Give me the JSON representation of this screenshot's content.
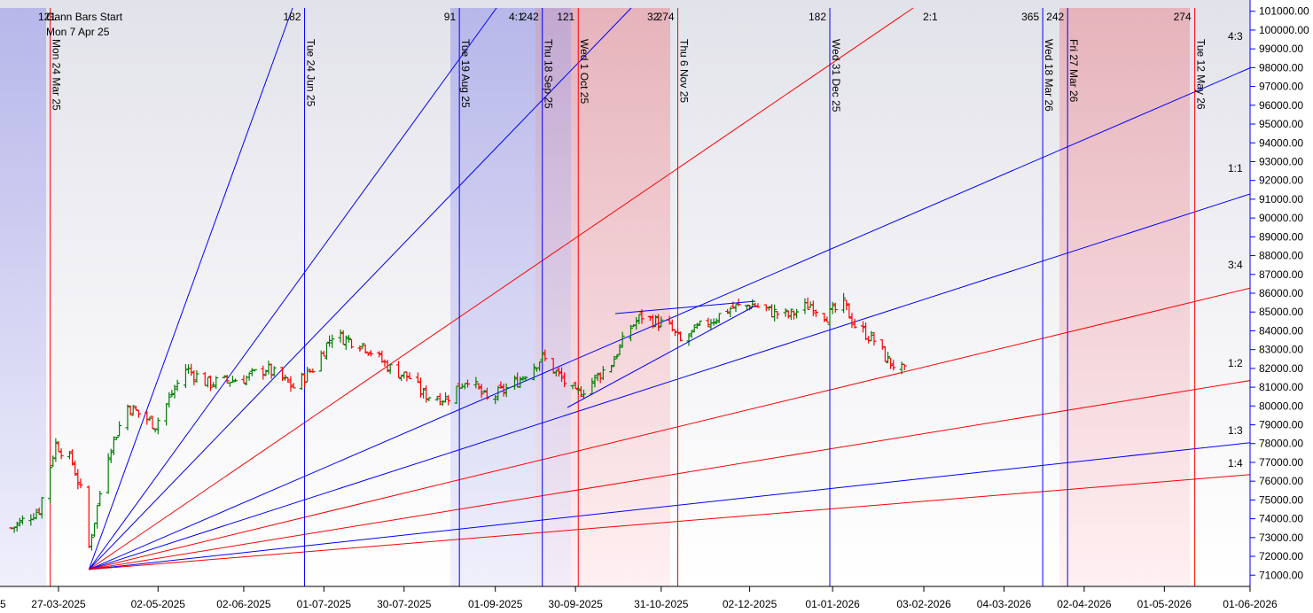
{
  "chart_data": {
    "type": "candlestick",
    "title": "",
    "annotation": {
      "gann_start_label": "Gann Bars Start",
      "gann_start_date": "Mon 7 Apr 25",
      "overlapped_label": "121"
    },
    "x_axis": {
      "tick_labels": [
        "27-03-2025",
        "02-05-2025",
        "02-06-2025",
        "01-07-2025",
        "30-07-2025",
        "01-09-2025",
        "30-09-2025",
        "31-10-2025",
        "02-12-2025",
        "01-01-2026",
        "03-02-2026",
        "04-03-2026",
        "02-04-2026",
        "01-05-2026",
        "01-06-2026"
      ],
      "partial_left_label": "5"
    },
    "y_axis": {
      "ylim": [
        70400,
        101600
      ],
      "ticks": [
        71000,
        72000,
        73000,
        74000,
        75000,
        76000,
        77000,
        78000,
        79000,
        80000,
        81000,
        82000,
        83000,
        84000,
        85000,
        86000,
        87000,
        88000,
        89000,
        90000,
        91000,
        92000,
        93000,
        94000,
        95000,
        96000,
        97000,
        98000,
        99000,
        100000,
        101000
      ],
      "tick_labels": [
        "71000.00",
        "72000.00",
        "73000.00",
        "74000.00",
        "75000.00",
        "76000.00",
        "77000.00",
        "78000.00",
        "79000.00",
        "80000.00",
        "81000.00",
        "82000.00",
        "83000.00",
        "84000.00",
        "85000.00",
        "86000.00",
        "87000.00",
        "88000.00",
        "89000.00",
        "90000.00",
        "91000.00",
        "92000.00",
        "93000.00",
        "94000.00",
        "95000.00",
        "96000.00",
        "97000.00",
        "98000.00",
        "99000.00",
        "100000.00",
        "101000.00"
      ]
    },
    "gann_fan_labels": [
      "4:3",
      "1:1",
      "3:4",
      "1:2",
      "1:3",
      "1:4"
    ],
    "top_fan_labels": [
      "4:1",
      "2:1"
    ],
    "time_cycle_lines": [
      {
        "date_label": "Mon 24 Mar 25",
        "count": "",
        "color": "#ff0000"
      },
      {
        "date_label": "Tue 24 Jun 25",
        "count": "182",
        "color": "#0000ff"
      },
      {
        "date_label": "Tue 19 Aug 25",
        "count": "91",
        "color": "#0000ff"
      },
      {
        "date_label": "Thu 18 Sep 25",
        "count": "242",
        "color": "#0000ff"
      },
      {
        "date_label": "Wed 1 Oct 25",
        "count": "121",
        "color": "#ff0000"
      },
      {
        "date_label": "Thu 6 Nov 25",
        "count": "274",
        "color": "#ff0000"
      },
      {
        "date_label": "Wed 31 Dec 25",
        "count": "182",
        "color": "#0000ff"
      },
      {
        "date_label": "Wed 18 Mar 26",
        "count": "365",
        "color": "#0000ff"
      },
      {
        "date_label": "Fri 27 Mar 26",
        "count": "242",
        "color": "#0000ff"
      },
      {
        "date_label": "Tue 12 May 26",
        "count": "274",
        "color": "#ff0000"
      }
    ],
    "extra_count_labels": [
      "32"
    ],
    "colors": {
      "up": "#008000",
      "down": "#ff0000",
      "blue": "#0000ff",
      "red": "#ff0000"
    },
    "ohlc_anchors": [
      [
        "2025-03-10",
        73500
      ],
      [
        "2025-03-20",
        74500
      ],
      [
        "2025-03-26",
        78000
      ],
      [
        "2025-04-01",
        77000
      ],
      [
        "2025-04-04",
        75500
      ],
      [
        "2025-04-07",
        72500
      ],
      [
        "2025-04-14",
        77500
      ],
      [
        "2025-04-21",
        80000
      ],
      [
        "2025-05-01",
        79000
      ],
      [
        "2025-05-12",
        82000
      ],
      [
        "2025-05-20",
        81200
      ],
      [
        "2025-06-03",
        81500
      ],
      [
        "2025-06-10",
        82000
      ],
      [
        "2025-06-20",
        81000
      ],
      [
        "2025-06-27",
        82000
      ],
      [
        "2025-07-01",
        83000
      ],
      [
        "2025-07-04",
        83800
      ],
      [
        "2025-07-15",
        83300
      ],
      [
        "2025-07-25",
        82000
      ],
      [
        "2025-08-01",
        81500
      ],
      [
        "2025-08-06",
        80600
      ],
      [
        "2025-08-14",
        80400
      ],
      [
        "2025-08-22",
        81500
      ],
      [
        "2025-08-29",
        80300
      ],
      [
        "2025-09-08",
        81200
      ],
      [
        "2025-09-18",
        82600
      ],
      [
        "2025-09-30",
        80600
      ],
      [
        "2025-10-03",
        80900
      ],
      [
        "2025-10-13",
        82300
      ],
      [
        "2025-10-20",
        84200
      ],
      [
        "2025-10-24",
        84800
      ],
      [
        "2025-11-03",
        84200
      ],
      [
        "2025-11-07",
        83400
      ],
      [
        "2025-11-14",
        84200
      ],
      [
        "2025-11-25",
        85200
      ],
      [
        "2025-12-03",
        85400
      ],
      [
        "2025-12-10",
        85000
      ],
      [
        "2025-12-16",
        84800
      ],
      [
        "2025-12-24",
        85400
      ],
      [
        "2025-12-30",
        84800
      ],
      [
        "2026-01-05",
        85400
      ],
      [
        "2026-01-09",
        84300
      ],
      [
        "2026-01-16",
        83500
      ],
      [
        "2026-01-21",
        82400
      ],
      [
        "2026-01-27",
        81800
      ]
    ]
  }
}
